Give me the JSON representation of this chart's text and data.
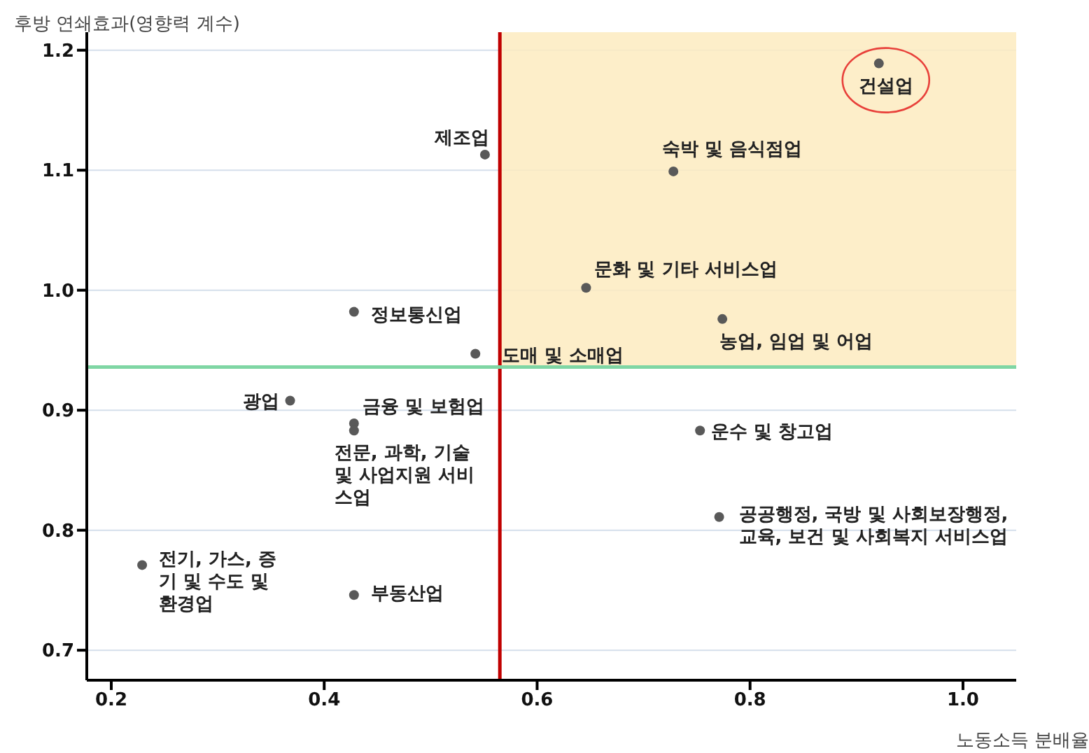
{
  "chart_data": {
    "type": "scatter",
    "xlabel": "노동소득 분배율",
    "ylabel": "후방 연쇄효과(영향력 계수)",
    "series": [
      {
        "color": "#595959",
        "x": [
          0.921,
          0.728,
          0.551,
          0.646,
          0.774,
          0.428,
          0.542,
          0.368,
          0.428,
          0.428,
          0.753,
          0.771,
          0.229,
          0.428
        ],
        "values": [
          1.189,
          1.099,
          1.113,
          1.002,
          0.976,
          0.982,
          0.947,
          0.908,
          0.889,
          0.883,
          0.883,
          0.811,
          0.771,
          0.746
        ]
      }
    ],
    "annotations": [
      {
        "text": "건설업",
        "x": 0.921,
        "y": 1.189
      },
      {
        "text": "숙박 및 음식점업",
        "x": 0.728,
        "y": 1.099
      },
      {
        "text": "제조업",
        "x": 0.551,
        "y": 1.113
      },
      {
        "text": "문화 및 기타 서비스업",
        "x": 0.646,
        "y": 1.002
      },
      {
        "text": "농업, 임업 및 어업",
        "x": 0.774,
        "y": 0.976
      },
      {
        "text": "정보통신업",
        "x": 0.428,
        "y": 0.982
      },
      {
        "text": "도매 및 소매업",
        "x": 0.542,
        "y": 0.947
      },
      {
        "text": "광업",
        "x": 0.368,
        "y": 0.908
      },
      {
        "text": "금융 및 보험업",
        "x": 0.428,
        "y": 0.889
      },
      {
        "text": "전문, 과학, 기술\n및 사업지원 서비\n스업",
        "x": 0.428,
        "y": 0.883
      },
      {
        "text": "운수 및 창고업",
        "x": 0.753,
        "y": 0.883
      },
      {
        "text": "공공행정, 국방 및 사회보장행정,\n교육, 보건 및 사회복지 서비스업",
        "x": 0.771,
        "y": 0.811
      },
      {
        "text": "전기, 가스, 증\n기 및 수도 및\n환경업",
        "x": 0.229,
        "y": 0.771
      },
      {
        "text": "부동산업",
        "x": 0.428,
        "y": 0.746
      }
    ],
    "ref_lines": [
      {
        "axis": "x",
        "value": 0.565,
        "color": "#c00000"
      },
      {
        "axis": "y",
        "value": 0.936,
        "color": "#7fd6a4"
      }
    ],
    "bands": [
      {
        "axis": "x",
        "from": 0.565,
        "to": 1.05,
        "color": "#fdebc0"
      }
    ],
    "xlim": [
      0.177,
      1.05
    ],
    "xticks": [
      0.2,
      0.4,
      0.6,
      0.8,
      {
        "value": 1,
        "label": "1.0"
      }
    ],
    "ylim": [
      0.675,
      1.215
    ],
    "yticks": [
      0.7,
      0.8,
      0.9,
      {
        "value": 1,
        "label": "1.0"
      },
      1.1,
      1.2
    ],
    "grid": "y",
    "marker": "circle",
    "legend": false
  }
}
